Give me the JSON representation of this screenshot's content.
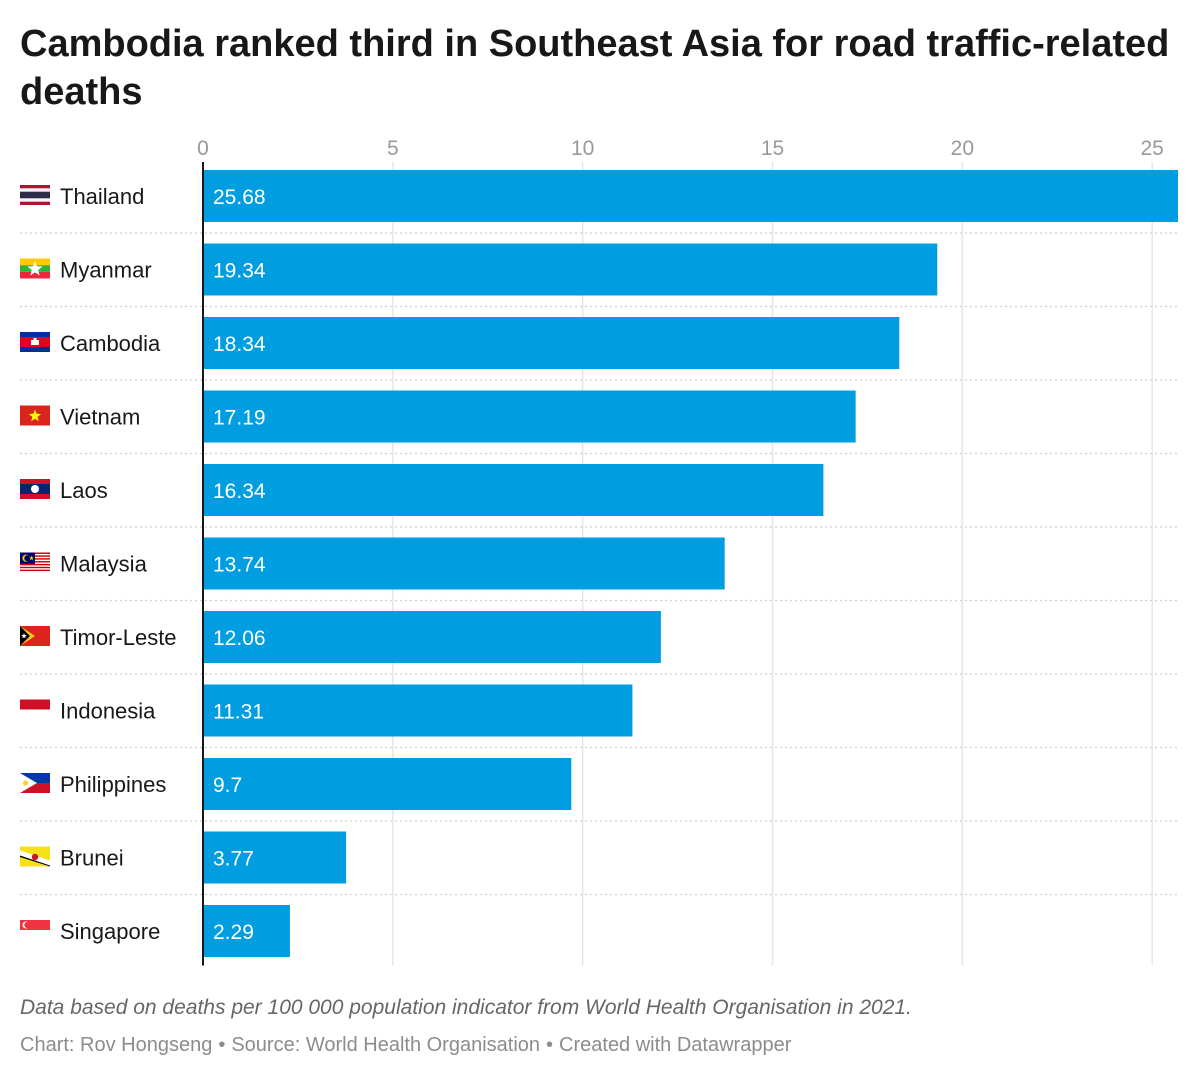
{
  "title": "Cambodia ranked third in Southeast Asia for road traffic-related deaths",
  "footer": {
    "note": "Data based on deaths per 100 000 population indicator from World Health Organisation in 2021.",
    "chart_by": "Chart: Rov Hongseng",
    "source": "Source: World Health Organisation",
    "created_with": "Created with Datawrapper",
    "separator": "•"
  },
  "colors": {
    "bar": "#009ee0",
    "bar_label": "#ffffff",
    "axis": "#181818",
    "grid": "#e6e6e6",
    "tick": "#999999",
    "row_divider": "#cfcfcf"
  },
  "chart_data": {
    "type": "bar",
    "orientation": "horizontal",
    "categories": [
      "Thailand",
      "Myanmar",
      "Cambodia",
      "Vietnam",
      "Laos",
      "Malaysia",
      "Timor-Leste",
      "Indonesia",
      "Philippines",
      "Brunei",
      "Singapore"
    ],
    "flag_icons": [
      "thailand-flag-icon",
      "myanmar-flag-icon",
      "cambodia-flag-icon",
      "vietnam-flag-icon",
      "laos-flag-icon",
      "malaysia-flag-icon",
      "timor-leste-flag-icon",
      "indonesia-flag-icon",
      "philippines-flag-icon",
      "brunei-flag-icon",
      "singapore-flag-icon"
    ],
    "values": [
      25.68,
      19.34,
      18.34,
      17.19,
      16.34,
      13.74,
      12.06,
      11.31,
      9.7,
      3.77,
      2.29
    ],
    "value_labels": [
      "25.68",
      "19.34",
      "18.34",
      "17.19",
      "16.34",
      "13.74",
      "12.06",
      "11.31",
      "9.7",
      "3.77",
      "2.29"
    ],
    "xticks": [
      0,
      5,
      10,
      15,
      20,
      25
    ],
    "xlim": [
      0,
      25.68
    ],
    "grid": true,
    "axis_position": "top",
    "title": "Cambodia ranked third in Southeast Asia for road traffic-related deaths",
    "xlabel": "",
    "ylabel": ""
  }
}
